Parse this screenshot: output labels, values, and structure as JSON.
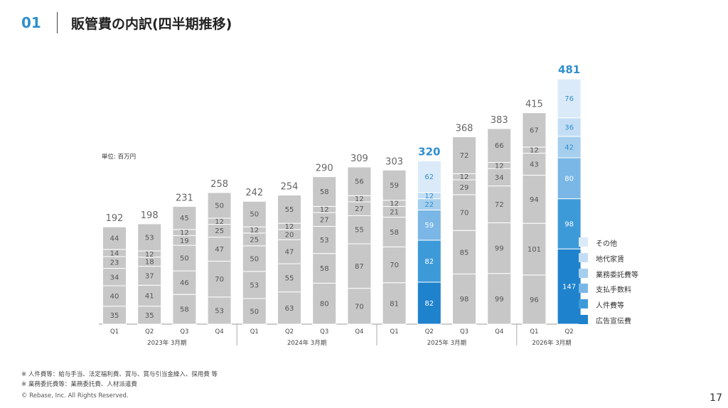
{
  "header": {
    "number": "01",
    "title": "販管費の内訳(四半期推移)"
  },
  "unit_label": "単位: 百万円",
  "notes": [
    "※ 人件費等：給与手当、法定福利費、賞与、賞与引当金繰入、採用費 等",
    "※ 業務委託費等：業務委託費、人材派遣費"
  ],
  "copyright": "© Rebase, Inc. All Rights Reserved.",
  "page_number": "17",
  "colors": {
    "gray": "#c7c7c7",
    "gray_text": "#555555",
    "total_gray": "#666666",
    "highlight_total": "#2f8fcf",
    "series": [
      "#1f82cd",
      "#3d9ad9",
      "#7ab7e6",
      "#a6cfee",
      "#c3def4",
      "#dbeaf8"
    ]
  },
  "chart_data": {
    "type": "bar",
    "stacked": true,
    "categories": [
      "Q1",
      "Q2",
      "Q3",
      "Q4",
      "Q1",
      "Q2",
      "Q3",
      "Q4",
      "Q1",
      "Q2",
      "Q3",
      "Q4",
      "Q1",
      "Q2"
    ],
    "groups": [
      {
        "label": "2023年 3月期",
        "count": 4
      },
      {
        "label": "2024年 3月期",
        "count": 4
      },
      {
        "label": "2025年 3月期",
        "count": 4
      },
      {
        "label": "2026年 3月期",
        "count": 2
      }
    ],
    "series": [
      {
        "name": "広告宣伝費",
        "values": [
          35,
          35,
          58,
          53,
          50,
          63,
          80,
          70,
          81,
          82,
          98,
          99,
          96,
          147
        ]
      },
      {
        "name": "人件費等",
        "values": [
          40,
          41,
          46,
          70,
          53,
          55,
          58,
          87,
          70,
          82,
          85,
          99,
          101,
          98
        ]
      },
      {
        "name": "支払手数料",
        "values": [
          34,
          37,
          50,
          47,
          50,
          47,
          53,
          55,
          58,
          59,
          70,
          72,
          94,
          80
        ]
      },
      {
        "name": "業務委託費等",
        "values": [
          23,
          18,
          19,
          25,
          25,
          20,
          27,
          27,
          21,
          22,
          29,
          34,
          43,
          42
        ]
      },
      {
        "name": "地代家賃",
        "values": [
          14,
          12,
          12,
          12,
          12,
          12,
          12,
          12,
          12,
          12,
          12,
          12,
          12,
          36
        ]
      },
      {
        "name": "その他",
        "values": [
          44,
          53,
          45,
          50,
          50,
          55,
          58,
          56,
          59,
          62,
          72,
          66,
          67,
          76
        ]
      }
    ],
    "totals": [
      192,
      198,
      231,
      258,
      242,
      254,
      290,
      309,
      303,
      320,
      368,
      383,
      415,
      481
    ],
    "highlighted": [
      9,
      13
    ],
    "ylim": [
      0,
      500
    ]
  }
}
